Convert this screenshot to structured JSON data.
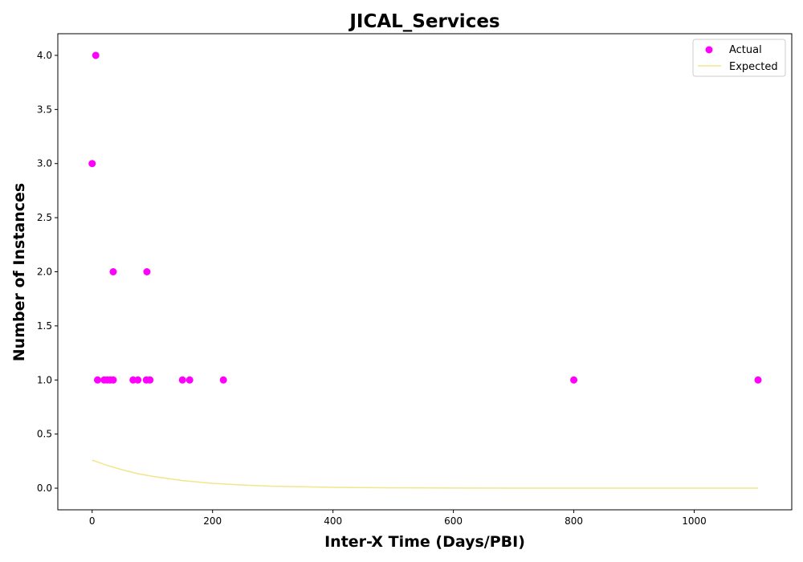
{
  "chart_data": {
    "type": "scatter",
    "title": "JICAL_Services",
    "xlabel": "Inter-X Time (Days/PBI)",
    "ylabel": "Number of Instances",
    "xlim": [
      -57,
      1162
    ],
    "ylim": [
      -0.2,
      4.2
    ],
    "xticks": [
      0,
      200,
      400,
      600,
      800,
      1000
    ],
    "yticks": [
      0.0,
      0.5,
      1.0,
      1.5,
      2.0,
      2.5,
      3.0,
      3.5,
      4.0
    ],
    "grid": false,
    "legend_position": "top-right",
    "series": [
      {
        "name": "Actual",
        "kind": "scatter",
        "color": "#ff00ff",
        "points": [
          [
            0,
            3
          ],
          [
            6,
            4
          ],
          [
            9,
            1
          ],
          [
            20,
            1
          ],
          [
            25,
            1
          ],
          [
            30,
            1
          ],
          [
            35,
            1
          ],
          [
            35,
            2
          ],
          [
            68,
            1
          ],
          [
            76,
            1
          ],
          [
            90,
            1
          ],
          [
            91,
            2
          ],
          [
            96,
            1
          ],
          [
            150,
            1
          ],
          [
            162,
            1
          ],
          [
            218,
            1
          ],
          [
            800,
            1
          ],
          [
            1106,
            1
          ]
        ]
      },
      {
        "name": "Expected",
        "kind": "line",
        "color": "#f0e68c",
        "points": [
          [
            0,
            0.26
          ],
          [
            25,
            0.21
          ],
          [
            50,
            0.17
          ],
          [
            75,
            0.135
          ],
          [
            100,
            0.11
          ],
          [
            150,
            0.07
          ],
          [
            200,
            0.045
          ],
          [
            250,
            0.029
          ],
          [
            300,
            0.018
          ],
          [
            400,
            0.008
          ],
          [
            500,
            0.003
          ],
          [
            600,
            0.001
          ],
          [
            800,
            0.0002
          ],
          [
            1000,
            0.0
          ],
          [
            1106,
            0.0
          ]
        ]
      }
    ]
  }
}
